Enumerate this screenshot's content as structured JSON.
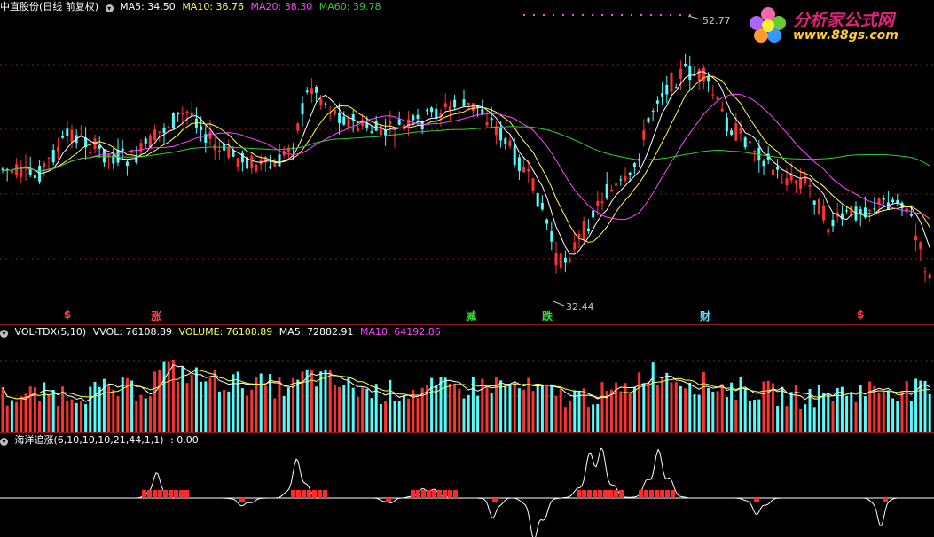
{
  "main": {
    "title": "中直股份(日线 前复权)",
    "ma": [
      {
        "label": "MA5: 34.50",
        "color": "#ffffff"
      },
      {
        "label": "MA10: 36.76",
        "color": "#ffff55"
      },
      {
        "label": "MA20: 38.30",
        "color": "#ff44ff"
      },
      {
        "label": "MA60: 39.78",
        "color": "#33cc33"
      }
    ],
    "high_label": "52.77",
    "low_label": "32.44",
    "signals": [
      {
        "text": "$",
        "color": "#ff4444",
        "pos": 0.072
      },
      {
        "text": "涨",
        "color": "#ff4444",
        "pos": 0.168
      },
      {
        "text": "减",
        "color": "#33dd33",
        "pos": 0.505
      },
      {
        "text": "跌",
        "color": "#33dd33",
        "pos": 0.587
      },
      {
        "text": "财",
        "color": "#66ddff",
        "pos": 0.756
      },
      {
        "text": "$",
        "color": "#ff4444",
        "pos": 0.921
      }
    ]
  },
  "watermark": {
    "title": "分析家公式网",
    "url": "www.88gs.com"
  },
  "volume": {
    "name": "VOL-TDX(5,10)",
    "items": [
      {
        "label": "VVOL: 76108.89",
        "color": "#ffffff"
      },
      {
        "label": "VOLUME: 76108.89",
        "color": "#ffff55"
      },
      {
        "label": "MA5: 72882.91",
        "color": "#ffffff"
      },
      {
        "label": "MA10: 64192.86",
        "color": "#ff44ff"
      }
    ]
  },
  "indicator": {
    "name": "海洋追涨(6,10,10,10,21,44,1,1)",
    "value": ": 0.00"
  },
  "colors": {
    "up": "#ff3232",
    "down": "#54fcfc",
    "grid": "#8b1a1a"
  }
}
